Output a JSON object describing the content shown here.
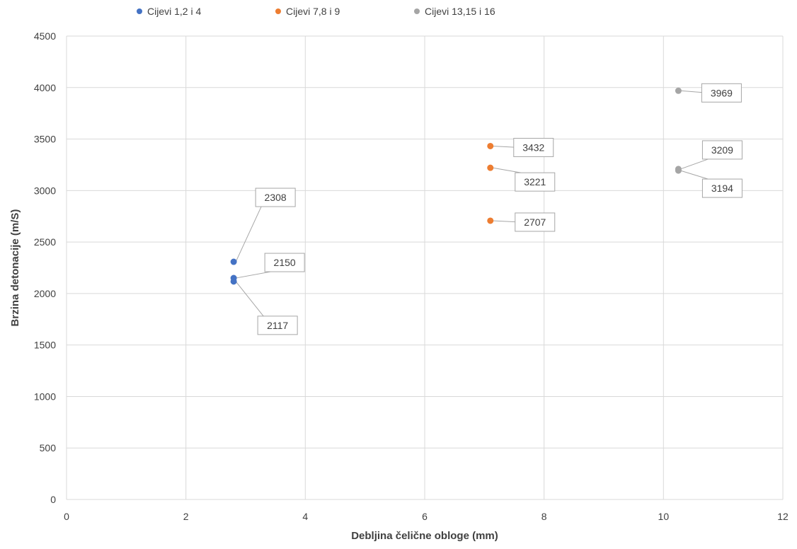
{
  "chart_data": {
    "type": "scatter",
    "title": "",
    "xlabel": "Debljina čelične obloge (mm)",
    "ylabel": "Brzina detonacije (m/S)",
    "xlim": [
      0,
      12
    ],
    "ylim": [
      0,
      4500
    ],
    "x_ticks": [
      0,
      2,
      4,
      6,
      8,
      10,
      12
    ],
    "y_ticks": [
      0,
      500,
      1000,
      1500,
      2000,
      2500,
      3000,
      3500,
      4000,
      4500
    ],
    "grid": true,
    "legend_position": "top",
    "series": [
      {
        "name": "Cijevi 1,2 i 4",
        "color": "#4472c4",
        "points": [
          {
            "x": 2.8,
            "y": 2308,
            "label": "2308"
          },
          {
            "x": 2.8,
            "y": 2150,
            "label": "2150"
          },
          {
            "x": 2.8,
            "y": 2117,
            "label": "2117"
          }
        ]
      },
      {
        "name": "Cijevi 7,8 i 9",
        "color": "#ed7d31",
        "points": [
          {
            "x": 7.1,
            "y": 3432,
            "label": "3432"
          },
          {
            "x": 7.1,
            "y": 3221,
            "label": "3221"
          },
          {
            "x": 7.1,
            "y": 2707,
            "label": "2707"
          }
        ]
      },
      {
        "name": "Cijevi 13,15 i 16",
        "color": "#a5a5a5",
        "points": [
          {
            "x": 10.25,
            "y": 3969,
            "label": "3969"
          },
          {
            "x": 10.25,
            "y": 3209,
            "label": "3209"
          },
          {
            "x": 10.25,
            "y": 3194,
            "label": "3194"
          }
        ]
      }
    ]
  }
}
